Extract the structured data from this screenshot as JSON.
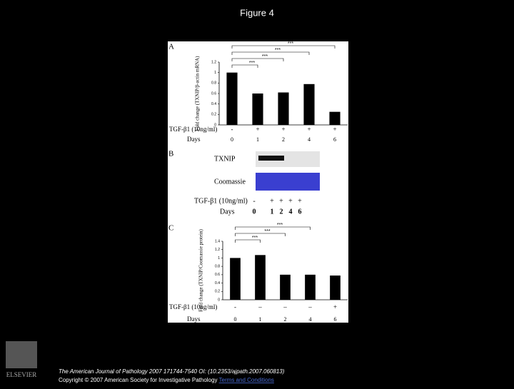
{
  "title": "Figure 4",
  "chart_data": [
    {
      "type": "bar",
      "panel": "A",
      "ylabel": "Fold change (TXNIP/β-actin mRNA)",
      "categories": [
        "0",
        "1",
        "2",
        "4",
        "6"
      ],
      "treatment": [
        "-",
        "+",
        "+",
        "+",
        "+"
      ],
      "row_labels": [
        "TGF-β1 (10ng/ml)",
        "Days"
      ],
      "values": [
        1.0,
        0.6,
        0.62,
        0.78,
        0.25
      ],
      "color": "#000000",
      "ylim": [
        0,
        1.2
      ],
      "yticks": [
        0,
        0.2,
        0.4,
        0.6,
        0.8,
        1,
        1.2
      ],
      "annotations": [
        "***",
        "***",
        "***",
        "***"
      ]
    },
    {
      "type": "bar",
      "panel": "C",
      "ylabel": "Fold change (TXNIP/Coomassie protein)",
      "categories": [
        "0",
        "1",
        "2",
        "4",
        "6"
      ],
      "treatment": [
        "-",
        "–",
        "–",
        "–",
        "+"
      ],
      "row_labels": [
        "TGF-β1 (10ng/ml)",
        "Days"
      ],
      "values": [
        1.0,
        1.07,
        0.6,
        0.6,
        0.58
      ],
      "color": "#000000",
      "ylim": [
        0,
        1.4
      ],
      "yticks": [
        0,
        0.2,
        0.4,
        0.6,
        0.8,
        1,
        1.2,
        1.4
      ],
      "annotations": [
        "***",
        "***",
        "***"
      ]
    }
  ],
  "blot": {
    "panel": "B",
    "rows": [
      "TXNIP",
      "Coomassie"
    ],
    "row_labels": [
      "TGF-β1 (10ng/ml)",
      "Days"
    ],
    "treatment": [
      "-",
      "+",
      "+",
      "+",
      "+"
    ],
    "days": [
      "0",
      "1",
      "2",
      "4",
      "6"
    ]
  },
  "logo": "ELSEVIER",
  "footer": {
    "citation": "The American Journal of Pathology 2007 171744-7540 OI: (10.2353/ajpath.2007.060813)",
    "copyright": "Copyright © 2007 American Society for Investigative Pathology",
    "link": "Terms and Conditions"
  }
}
